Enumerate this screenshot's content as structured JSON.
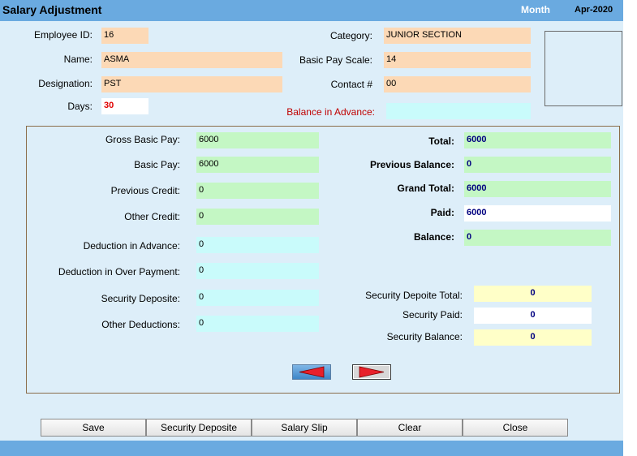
{
  "header": {
    "title": "Salary Adjustment",
    "month_label": "Month",
    "month_value": "Apr-2020"
  },
  "employee": {
    "employee_id": {
      "label": "Employee ID:",
      "value": "16"
    },
    "name": {
      "label": "Name:",
      "value": "ASMA"
    },
    "designation": {
      "label": "Designation:",
      "value": "PST"
    },
    "days": {
      "label": "Days:",
      "value": "30"
    },
    "category": {
      "label": "Category:",
      "value": "JUNIOR SECTION"
    },
    "basic_pay_scale": {
      "label": "Basic Pay Scale:",
      "value": "14"
    },
    "contact": {
      "label": "Contact #",
      "value": "00"
    },
    "balance_in_advance": {
      "label": "Balance in Advance:",
      "value": ""
    }
  },
  "pay": {
    "gross_basic_pay": {
      "label": "Gross Basic Pay:",
      "value": "6000"
    },
    "basic_pay": {
      "label": "Basic Pay:",
      "value": "6000"
    },
    "previous_credit": {
      "label": "Previous Credit:",
      "value": "0"
    },
    "other_credit": {
      "label": "Other Credit:",
      "value": "0"
    },
    "deduction_in_advance": {
      "label": "Deduction in Advance:",
      "value": "0"
    },
    "deduction_in_over_payment": {
      "label": "Deduction in Over Payment:",
      "value": "0"
    },
    "security_deposite": {
      "label": "Security Deposite:",
      "value": "0"
    },
    "other_deductions": {
      "label": "Other Deductions:",
      "value": "0"
    }
  },
  "totals": {
    "total": {
      "label": "Total:",
      "value": "6000"
    },
    "previous_balance": {
      "label": "Previous Balance:",
      "value": "0"
    },
    "grand_total": {
      "label": "Grand Total:",
      "value": "6000"
    },
    "paid": {
      "label": "Paid:",
      "value": "6000"
    },
    "balance": {
      "label": "Balance:",
      "value": "0"
    }
  },
  "security": {
    "total": {
      "label": "Security Depoite Total:",
      "value": "0"
    },
    "paid": {
      "label": "Security Paid:",
      "value": "0"
    },
    "balance": {
      "label": "Security Balance:",
      "value": "0"
    }
  },
  "nav": {
    "prev_icon": "arrow-left-icon",
    "next_icon": "arrow-right-icon",
    "arrow_color": "#e8202a"
  },
  "buttons": {
    "save": "Save",
    "security_deposite": "Security Deposite",
    "salary_slip": "Salary Slip",
    "clear": "Clear",
    "close": "Close"
  }
}
